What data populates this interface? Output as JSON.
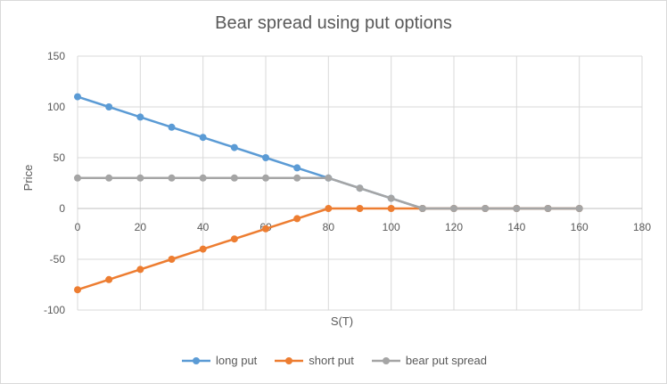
{
  "chart_data": {
    "type": "line",
    "title": "Bear spread using put options",
    "xlabel": "S(T)",
    "ylabel": "Price",
    "xlim": [
      0,
      180
    ],
    "ylim": [
      -100,
      150
    ],
    "xticks": [
      0,
      20,
      40,
      60,
      80,
      100,
      120,
      140,
      160,
      180
    ],
    "yticks": [
      -100,
      -50,
      0,
      50,
      100,
      150
    ],
    "grid": true,
    "legend": "bottom",
    "x": [
      0,
      10,
      20,
      30,
      40,
      50,
      60,
      70,
      80,
      90,
      100,
      110,
      120,
      130,
      140,
      150,
      160
    ],
    "series": [
      {
        "name": "long put",
        "color": "#5b9bd5",
        "values": [
          110,
          100,
          90,
          80,
          70,
          60,
          50,
          40,
          30,
          20,
          10,
          0,
          0,
          0,
          0,
          0,
          0
        ]
      },
      {
        "name": "short put",
        "color": "#ed7d31",
        "values": [
          -80,
          -70,
          -60,
          -50,
          -40,
          -30,
          -20,
          -10,
          0,
          0,
          0,
          0,
          0,
          0,
          0,
          0,
          0
        ]
      },
      {
        "name": "bear put spread",
        "color": "#a5a5a5",
        "values": [
          30,
          30,
          30,
          30,
          30,
          30,
          30,
          30,
          30,
          20,
          10,
          0,
          0,
          0,
          0,
          0,
          0
        ]
      }
    ]
  }
}
